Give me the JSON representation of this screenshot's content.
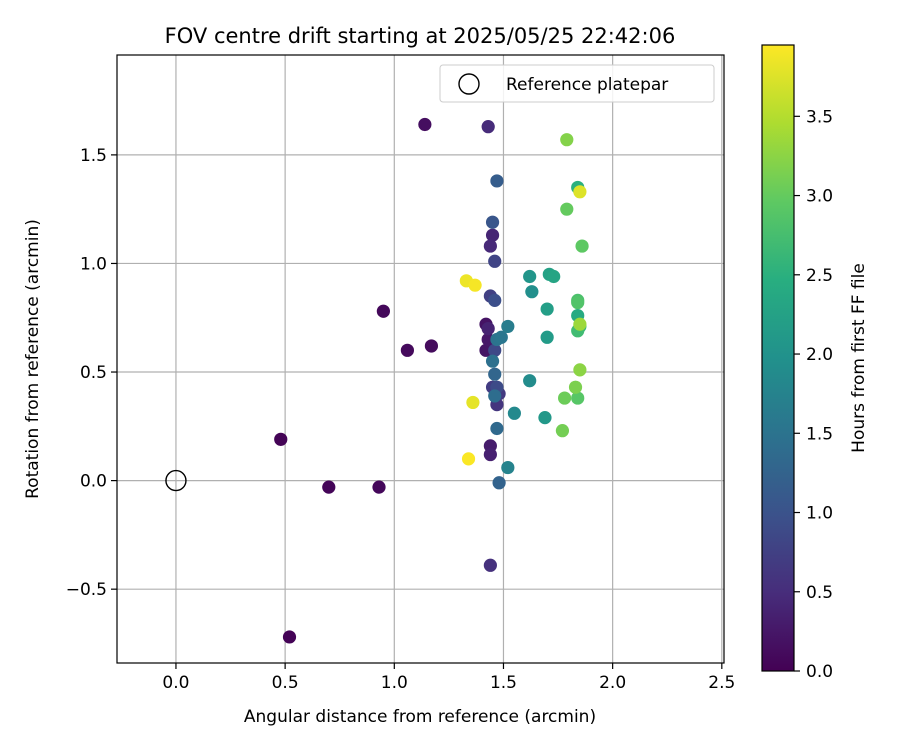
{
  "chart_data": {
    "type": "scatter",
    "title": "FOV centre drift starting at 2025/05/25 22:42:06",
    "xlabel": "Angular distance from reference (arcmin)",
    "ylabel": "Rotation from reference (arcmin)",
    "xlim": [
      -0.27,
      2.51
    ],
    "ylim": [
      -0.84,
      1.96
    ],
    "xticks": [
      0.0,
      0.5,
      1.0,
      1.5,
      2.0,
      2.5
    ],
    "xtick_labels": [
      "0.0",
      "0.5",
      "1.0",
      "1.5",
      "2.0",
      "2.5"
    ],
    "yticks": [
      -0.5,
      0.0,
      0.5,
      1.0,
      1.5
    ],
    "ytick_labels": [
      "−0.5",
      "0.0",
      "0.5",
      "1.0",
      "1.5"
    ],
    "grid": true,
    "legend": {
      "position": "top-right",
      "entries": [
        "Reference platepar"
      ]
    },
    "reference_point": {
      "name": "Reference platepar",
      "x": 0.0,
      "y": 0.0,
      "marker": "open-circle"
    },
    "colorbar": {
      "label": "Hours from first FF file",
      "colormap": "viridis",
      "range": [
        0.0,
        3.95
      ],
      "ticks": [
        0.0,
        0.5,
        1.0,
        1.5,
        2.0,
        2.5,
        3.0,
        3.5
      ],
      "tick_labels": [
        "0.0",
        "0.5",
        "1.0",
        "1.5",
        "2.0",
        "2.5",
        "3.0",
        "3.5"
      ]
    },
    "points": [
      {
        "x": 0.52,
        "y": -0.72,
        "c": 0.02
      },
      {
        "x": 0.48,
        "y": 0.19,
        "c": 0.03
      },
      {
        "x": 0.7,
        "y": -0.03,
        "c": 0.05
      },
      {
        "x": 0.93,
        "y": -0.03,
        "c": 0.07
      },
      {
        "x": 0.95,
        "y": 0.78,
        "c": 0.08
      },
      {
        "x": 1.06,
        "y": 0.6,
        "c": 0.1
      },
      {
        "x": 1.17,
        "y": 0.62,
        "c": 0.12
      },
      {
        "x": 1.14,
        "y": 1.64,
        "c": 0.15
      },
      {
        "x": 1.42,
        "y": 0.72,
        "c": 0.2
      },
      {
        "x": 1.42,
        "y": 0.6,
        "c": 0.22
      },
      {
        "x": 1.43,
        "y": 0.65,
        "c": 0.25
      },
      {
        "x": 1.44,
        "y": 0.16,
        "c": 0.3
      },
      {
        "x": 1.44,
        "y": 0.12,
        "c": 0.35
      },
      {
        "x": 1.43,
        "y": 0.7,
        "c": 0.38
      },
      {
        "x": 1.45,
        "y": 1.13,
        "c": 0.4
      },
      {
        "x": 1.44,
        "y": 1.08,
        "c": 0.45
      },
      {
        "x": 1.43,
        "y": 1.63,
        "c": 0.48
      },
      {
        "x": 1.44,
        "y": -0.39,
        "c": 0.55
      },
      {
        "x": 1.47,
        "y": 0.35,
        "c": 0.6
      },
      {
        "x": 1.48,
        "y": 0.4,
        "c": 0.65
      },
      {
        "x": 1.45,
        "y": 0.43,
        "c": 0.7
      },
      {
        "x": 1.44,
        "y": 0.85,
        "c": 0.75
      },
      {
        "x": 1.46,
        "y": 1.01,
        "c": 0.8
      },
      {
        "x": 1.46,
        "y": 0.6,
        "c": 0.85
      },
      {
        "x": 1.47,
        "y": 0.43,
        "c": 0.9
      },
      {
        "x": 1.46,
        "y": 0.83,
        "c": 0.95
      },
      {
        "x": 1.45,
        "y": 1.19,
        "c": 1.05
      },
      {
        "x": 1.47,
        "y": 1.38,
        "c": 1.15
      },
      {
        "x": 1.48,
        "y": -0.01,
        "c": 1.25
      },
      {
        "x": 1.46,
        "y": 0.49,
        "c": 1.3
      },
      {
        "x": 1.47,
        "y": 0.24,
        "c": 1.35
      },
      {
        "x": 1.46,
        "y": 0.39,
        "c": 1.4
      },
      {
        "x": 1.45,
        "y": 0.55,
        "c": 1.45
      },
      {
        "x": 1.47,
        "y": 0.65,
        "c": 1.5
      },
      {
        "x": 1.49,
        "y": 0.66,
        "c": 1.55
      },
      {
        "x": 1.52,
        "y": 0.71,
        "c": 1.65
      },
      {
        "x": 1.52,
        "y": 0.06,
        "c": 1.75
      },
      {
        "x": 1.55,
        "y": 0.31,
        "c": 1.85
      },
      {
        "x": 1.62,
        "y": 0.46,
        "c": 1.9
      },
      {
        "x": 1.63,
        "y": 0.87,
        "c": 1.95
      },
      {
        "x": 1.62,
        "y": 0.94,
        "c": 2.05
      },
      {
        "x": 1.69,
        "y": 0.29,
        "c": 2.1
      },
      {
        "x": 1.7,
        "y": 0.66,
        "c": 2.15
      },
      {
        "x": 1.7,
        "y": 0.79,
        "c": 2.2
      },
      {
        "x": 1.71,
        "y": 0.95,
        "c": 2.25
      },
      {
        "x": 1.73,
        "y": 0.94,
        "c": 2.3
      },
      {
        "x": 1.84,
        "y": 0.76,
        "c": 2.4
      },
      {
        "x": 1.84,
        "y": 1.35,
        "c": 2.5
      },
      {
        "x": 1.85,
        "y": 0.71,
        "c": 2.6
      },
      {
        "x": 1.84,
        "y": 0.69,
        "c": 2.7
      },
      {
        "x": 1.84,
        "y": 0.83,
        "c": 2.8
      },
      {
        "x": 1.84,
        "y": 0.82,
        "c": 2.85
      },
      {
        "x": 1.84,
        "y": 0.38,
        "c": 2.9
      },
      {
        "x": 1.86,
        "y": 1.08,
        "c": 2.95
      },
      {
        "x": 1.79,
        "y": 1.25,
        "c": 3.0
      },
      {
        "x": 1.78,
        "y": 0.38,
        "c": 3.05
      },
      {
        "x": 1.77,
        "y": 0.23,
        "c": 3.1
      },
      {
        "x": 1.83,
        "y": 0.43,
        "c": 3.15
      },
      {
        "x": 1.79,
        "y": 1.57,
        "c": 3.2
      },
      {
        "x": 1.85,
        "y": 0.51,
        "c": 3.25
      },
      {
        "x": 1.85,
        "y": 0.72,
        "c": 3.35
      },
      {
        "x": 1.85,
        "y": 1.33,
        "c": 3.75
      },
      {
        "x": 1.36,
        "y": 0.36,
        "c": 3.8
      },
      {
        "x": 1.33,
        "y": 0.92,
        "c": 3.85
      },
      {
        "x": 1.37,
        "y": 0.9,
        "c": 3.9
      },
      {
        "x": 1.34,
        "y": 0.1,
        "c": 3.93
      }
    ]
  }
}
